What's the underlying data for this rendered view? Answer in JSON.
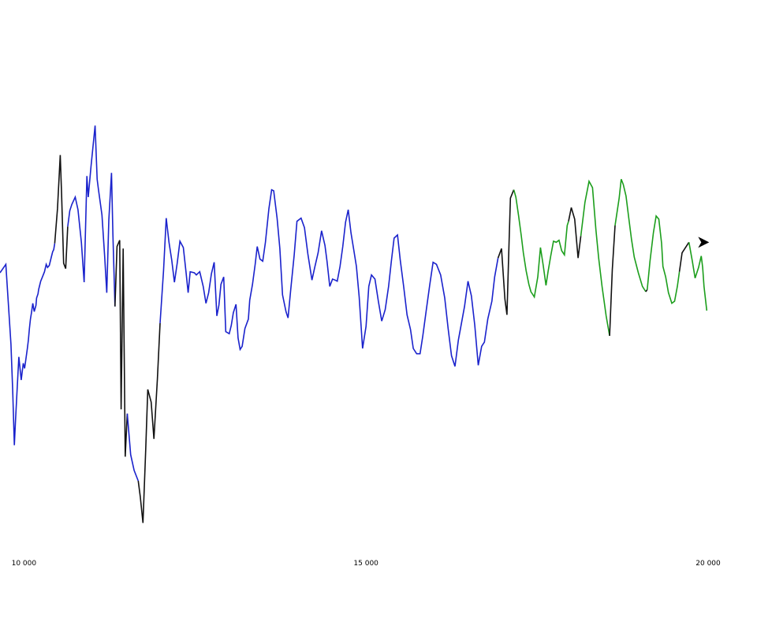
{
  "chart_data": {
    "type": "line",
    "title": "",
    "xlabel": "",
    "ylabel": "",
    "xlim": [
      9650,
      20000
    ],
    "ylim": [
      -180,
      180
    ],
    "grid": false,
    "legend": "none",
    "colors": {
      "blue": "#1a22cc",
      "black": "#111111",
      "green": "#1c9e1c",
      "marker": "#000000"
    },
    "x_ticks": [
      {
        "value": 10000,
        "label": "10 000"
      },
      {
        "value": 15000,
        "label": "15 000"
      },
      {
        "value": 20000,
        "label": "20 000"
      }
    ],
    "segments": [
      {
        "color": "blue",
        "x": [
          9650,
          9735,
          9810,
          9835,
          9860,
          9875,
          9895,
          9925,
          9960,
          9990,
          10010,
          10050,
          10065,
          10080,
          10095,
          10110,
          10130,
          10150,
          10175,
          10185,
          10205,
          10215,
          10230,
          10245,
          10270,
          10300,
          10325,
          10345,
          10370,
          10400,
          10420,
          10435,
          10450
        ],
        "y": [
          33,
          41,
          -35,
          -79,
          -131,
          -110,
          -84,
          -47,
          -69,
          -53,
          -58,
          -39,
          -31,
          -20,
          -11,
          -5,
          4,
          -4,
          2,
          9,
          13,
          17,
          21,
          25,
          29,
          34,
          41,
          38,
          40,
          48,
          53,
          55,
          61
        ]
      },
      {
        "color": "black",
        "x": [
          10450,
          10490,
          10530,
          10550,
          10580,
          10610,
          10640
        ],
        "y": [
          61,
          94,
          145,
          108,
          42,
          37,
          77
        ]
      },
      {
        "color": "blue",
        "x": [
          10640,
          10670,
          10700,
          10750,
          10790,
          10840,
          10880,
          10920,
          10940,
          10980,
          11040,
          11070,
          11090,
          11140,
          11180,
          11210,
          11240,
          11280,
          11300,
          11330
        ],
        "y": [
          77,
          92,
          98,
          105,
          93,
          62,
          24,
          125,
          105,
          134,
          173,
          122,
          112,
          88,
          49,
          14,
          83,
          128,
          69,
          1
        ]
      },
      {
        "color": "black",
        "x": [
          11330,
          11360,
          11400,
          11420,
          11450,
          11480,
          11510
        ],
        "y": [
          1,
          58,
          64,
          -97,
          56,
          -142,
          -101
        ]
      },
      {
        "color": "blue",
        "x": [
          11510,
          11560,
          11610,
          11670
        ],
        "y": [
          -101,
          -140,
          -155,
          -165
        ]
      },
      {
        "color": "black",
        "x": [
          11670,
          11700,
          11740,
          11780,
          11810,
          11860,
          11900,
          11950,
          11990
        ],
        "y": [
          -165,
          -180,
          -205,
          -135,
          -78,
          -90,
          -125,
          -68,
          -15
        ]
      },
      {
        "color": "blue",
        "x": [
          11990,
          12040,
          12080,
          12120,
          12160,
          12200,
          12240,
          12280,
          12330,
          12370,
          12400,
          12430,
          12490,
          12520,
          12570,
          12620,
          12660,
          12700,
          12740,
          12780,
          12820,
          12850,
          12880,
          12920,
          12950,
          13000,
          13030,
          13060,
          13100,
          13130,
          13160,
          13190,
          13230,
          13280,
          13300,
          13340,
          13380,
          13410,
          13450,
          13490,
          13530,
          13580,
          13620,
          13650,
          13700,
          13740,
          13780,
          13830,
          13860,
          13900,
          13950,
          13990,
          14050,
          14100,
          14150,
          14210,
          14250,
          14300,
          14350,
          14400,
          14430,
          14470,
          14510,
          14550,
          14580,
          14620,
          14660,
          14700,
          14740,
          14780,
          14820,
          14860,
          14900,
          14950,
          15000,
          15040,
          15080,
          15130,
          15180,
          15230,
          15280,
          15330,
          15370,
          15410,
          15460,
          15500,
          15550,
          15600,
          15650,
          15690,
          15740,
          15790,
          15830,
          15880,
          15930,
          15980,
          16030,
          16090,
          16150,
          16200,
          16250,
          16300,
          16350,
          16400,
          16440,
          16490,
          16540,
          16590,
          16640,
          16690,
          16730,
          16780,
          16840,
          16880,
          16930
        ],
        "y": [
          -15,
          35,
          85,
          62,
          45,
          24,
          42,
          63,
          57,
          33,
          14,
          34,
          33,
          31,
          34,
          20,
          4,
          14,
          32,
          43,
          -8,
          2,
          22,
          29,
          -23,
          -25,
          -17,
          -5,
          3,
          -29,
          -40,
          -37,
          -20,
          -11,
          7,
          22,
          41,
          58,
          46,
          44,
          62,
          94,
          112,
          111,
          85,
          56,
          12,
          -4,
          -10,
          17,
          50,
          82,
          85,
          76,
          51,
          26,
          38,
          52,
          73,
          59,
          44,
          20,
          27,
          26,
          25,
          39,
          58,
          81,
          93,
          71,
          55,
          39,
          10,
          -39,
          -18,
          20,
          31,
          27,
          6,
          -13,
          -2,
          20,
          44,
          66,
          69,
          45,
          20,
          -7,
          -21,
          -39,
          -44,
          -44,
          -27,
          -3,
          21,
          43,
          41,
          31,
          9,
          -20,
          -46,
          -56,
          -31,
          -13,
          1,
          25,
          11,
          -17,
          -55,
          -37,
          -33,
          -11,
          6,
          29,
          47
        ]
      },
      {
        "color": "black",
        "x": [
          16930,
          16980,
          17030,
          17060,
          17090,
          17110,
          17160
        ],
        "y": [
          47,
          56,
          8,
          -7,
          60,
          104,
          112
        ]
      },
      {
        "color": "green",
        "x": [
          17160,
          17190,
          17230,
          17270,
          17300,
          17340,
          17380,
          17410,
          17440,
          17460,
          17510,
          17550,
          17590,
          17630,
          17660,
          17700,
          17740,
          17780,
          17820,
          17860,
          17900,
          17940,
          17960
        ],
        "y": [
          112,
          105,
          87,
          68,
          52,
          35,
          22,
          15,
          12,
          10,
          29,
          57,
          40,
          21,
          34,
          49,
          63,
          62,
          64,
          54,
          50,
          78,
          82
        ]
      },
      {
        "color": "black",
        "x": [
          17960,
          18000,
          18050,
          18100,
          18140
        ],
        "y": [
          82,
          95,
          84,
          47,
          68
        ]
      },
      {
        "color": "green",
        "x": [
          18140,
          18200,
          18260,
          18310,
          18360,
          18400,
          18450,
          18510,
          18560
        ],
        "y": [
          68,
          100,
          120,
          114,
          74,
          47,
          20,
          -8,
          -27
        ]
      },
      {
        "color": "black",
        "x": [
          18560,
          18600,
          18640
        ],
        "y": [
          -27,
          36,
          78
        ]
      },
      {
        "color": "green",
        "x": [
          18640,
          18700,
          18730,
          18760,
          18800,
          18840,
          18880,
          18920,
          18980,
          19040,
          19090
        ],
        "y": [
          78,
          104,
          122,
          117,
          106,
          85,
          65,
          48,
          33,
          20,
          15
        ]
      },
      {
        "color": "black",
        "x": [
          19090,
          19110
        ],
        "y": [
          15,
          17
        ]
      },
      {
        "color": "green",
        "x": [
          19110,
          19150,
          19200,
          19240,
          19280,
          19320,
          19340,
          19380,
          19420,
          19470,
          19510,
          19550,
          19580
        ],
        "y": [
          17,
          44,
          71,
          87,
          84,
          61,
          39,
          29,
          14,
          4,
          6,
          20,
          34
        ]
      },
      {
        "color": "black",
        "x": [
          19580,
          19620,
          19680,
          19720
        ],
        "y": [
          34,
          52,
          58,
          62
        ]
      },
      {
        "color": "green",
        "x": [
          19720,
          19770,
          19810,
          19860,
          19900,
          19920,
          19940,
          19980
        ],
        "y": [
          62,
          44,
          28,
          38,
          49,
          38,
          20,
          -3
        ]
      }
    ],
    "end_marker": {
      "x": 19900,
      "y": 62
    }
  }
}
